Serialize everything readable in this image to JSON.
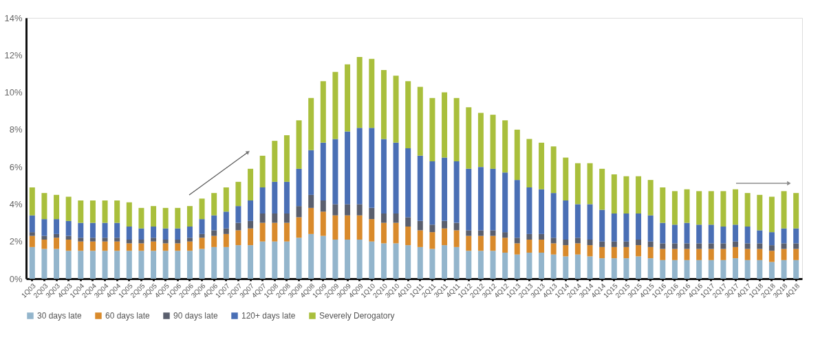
{
  "chart_data": {
    "type": "bar",
    "stacked": true,
    "categories": [
      "1Q03",
      "2Q03",
      "3Q03",
      "4Q03",
      "1Q04",
      "2Q04",
      "3Q04",
      "4Q04",
      "1Q05",
      "2Q05",
      "3Q05",
      "4Q05",
      "1Q06",
      "2Q06",
      "3Q06",
      "4Q06",
      "1Q07",
      "2Q07",
      "3Q07",
      "4Q07",
      "1Q08",
      "2Q08",
      "3Q08",
      "4Q08",
      "1Q09",
      "2Q09",
      "3Q09",
      "4Q09",
      "1Q10",
      "2Q10",
      "3Q10",
      "4Q10",
      "1Q11",
      "2Q11",
      "3Q11",
      "4Q11",
      "1Q12",
      "2Q12",
      "3Q12",
      "4Q12",
      "1Q13",
      "2Q13",
      "3Q13",
      "4Q13",
      "1Q14",
      "2Q14",
      "3Q14",
      "4Q14",
      "1Q15",
      "2Q15",
      "3Q15",
      "4Q15",
      "1Q16",
      "2Q16",
      "3Q16",
      "4Q16",
      "1Q17",
      "2Q17",
      "3Q17",
      "4Q17",
      "1Q18",
      "2Q18",
      "3Q18",
      "4Q18"
    ],
    "series": [
      {
        "name": "30 days late",
        "color": "#93b5cc",
        "values": [
          1.7,
          1.6,
          1.6,
          1.5,
          1.5,
          1.5,
          1.5,
          1.5,
          1.5,
          1.5,
          1.5,
          1.5,
          1.5,
          1.5,
          1.6,
          1.7,
          1.7,
          1.8,
          1.8,
          2.0,
          2.0,
          2.0,
          2.2,
          2.4,
          2.3,
          2.1,
          2.1,
          2.1,
          2.0,
          1.9,
          1.9,
          1.8,
          1.7,
          1.6,
          1.8,
          1.7,
          1.5,
          1.5,
          1.5,
          1.4,
          1.3,
          1.4,
          1.4,
          1.3,
          1.2,
          1.3,
          1.2,
          1.1,
          1.1,
          1.1,
          1.2,
          1.1,
          1.0,
          1.0,
          1.0,
          1.0,
          1.0,
          1.0,
          1.1,
          1.0,
          1.0,
          0.9,
          1.0,
          1.0
        ]
      },
      {
        "name": "60 days late",
        "color": "#d98a2b",
        "values": [
          0.6,
          0.5,
          0.6,
          0.6,
          0.5,
          0.5,
          0.5,
          0.5,
          0.4,
          0.4,
          0.5,
          0.4,
          0.4,
          0.5,
          0.6,
          0.6,
          0.7,
          0.8,
          0.9,
          1.0,
          1.0,
          1.0,
          1.1,
          1.4,
          1.3,
          1.3,
          1.3,
          1.3,
          1.2,
          1.1,
          1.1,
          1.0,
          0.9,
          0.9,
          0.9,
          0.9,
          0.8,
          0.8,
          0.8,
          0.8,
          0.6,
          0.7,
          0.7,
          0.6,
          0.6,
          0.6,
          0.6,
          0.6,
          0.6,
          0.6,
          0.6,
          0.6,
          0.6,
          0.6,
          0.6,
          0.6,
          0.6,
          0.6,
          0.6,
          0.6,
          0.6,
          0.6,
          0.6,
          0.6
        ]
      },
      {
        "name": "90 days late",
        "color": "#5a5f6e",
        "values": [
          0.2,
          0.2,
          0.2,
          0.2,
          0.2,
          0.2,
          0.2,
          0.2,
          0.2,
          0.2,
          0.2,
          0.2,
          0.2,
          0.2,
          0.2,
          0.3,
          0.3,
          0.4,
          0.4,
          0.5,
          0.5,
          0.5,
          0.6,
          0.7,
          0.6,
          0.6,
          0.6,
          0.6,
          0.6,
          0.5,
          0.5,
          0.5,
          0.5,
          0.4,
          0.4,
          0.4,
          0.3,
          0.3,
          0.3,
          0.3,
          0.3,
          0.3,
          0.3,
          0.3,
          0.3,
          0.3,
          0.3,
          0.3,
          0.3,
          0.3,
          0.3,
          0.3,
          0.3,
          0.3,
          0.3,
          0.3,
          0.3,
          0.3,
          0.3,
          0.3,
          0.3,
          0.3,
          0.3,
          0.3
        ]
      },
      {
        "name": "120+ days late",
        "color": "#4a6fb5",
        "values": [
          0.9,
          0.9,
          0.8,
          0.8,
          0.8,
          0.8,
          0.8,
          0.8,
          0.7,
          0.6,
          0.6,
          0.6,
          0.6,
          0.6,
          0.8,
          0.8,
          0.9,
          0.9,
          1.1,
          1.4,
          1.7,
          1.7,
          2.0,
          2.4,
          3.1,
          3.5,
          3.9,
          4.1,
          4.3,
          4.0,
          3.8,
          3.7,
          3.5,
          3.4,
          3.4,
          3.3,
          3.3,
          3.4,
          3.3,
          3.2,
          3.1,
          2.5,
          2.4,
          2.4,
          2.1,
          1.8,
          1.9,
          1.7,
          1.5,
          1.5,
          1.4,
          1.4,
          1.1,
          1.0,
          1.1,
          1.0,
          1.0,
          0.9,
          0.9,
          0.9,
          0.7,
          0.7,
          0.8,
          0.8
        ]
      },
      {
        "name": "Severely Derogatory",
        "color": "#a9bf3c",
        "values": [
          1.5,
          1.4,
          1.3,
          1.3,
          1.2,
          1.2,
          1.2,
          1.2,
          1.3,
          1.1,
          1.1,
          1.1,
          1.1,
          1.1,
          1.1,
          1.2,
          1.3,
          1.3,
          1.7,
          1.7,
          2.2,
          2.5,
          2.6,
          2.8,
          3.3,
          3.6,
          3.6,
          3.8,
          3.7,
          3.7,
          3.6,
          3.6,
          3.7,
          3.4,
          3.5,
          3.4,
          3.3,
          2.9,
          2.9,
          2.8,
          2.7,
          2.6,
          2.5,
          2.5,
          2.3,
          2.2,
          2.2,
          2.2,
          2.1,
          2.0,
          2.0,
          1.9,
          1.9,
          1.8,
          1.8,
          1.8,
          1.8,
          1.9,
          1.9,
          1.8,
          1.9,
          1.9,
          2.0,
          1.9
        ]
      }
    ],
    "ylim": [
      0,
      14
    ],
    "yticks": [
      {
        "value": 0,
        "label": "0%"
      },
      {
        "value": 2,
        "label": "2%"
      },
      {
        "value": 4,
        "label": "4%"
      },
      {
        "value": 6,
        "label": "6%"
      },
      {
        "value": 8,
        "label": "8%"
      },
      {
        "value": 10,
        "label": "10%"
      },
      {
        "value": 12,
        "label": "12%"
      },
      {
        "value": 14,
        "label": "14%"
      }
    ],
    "grid": false,
    "legend": "bottom"
  }
}
